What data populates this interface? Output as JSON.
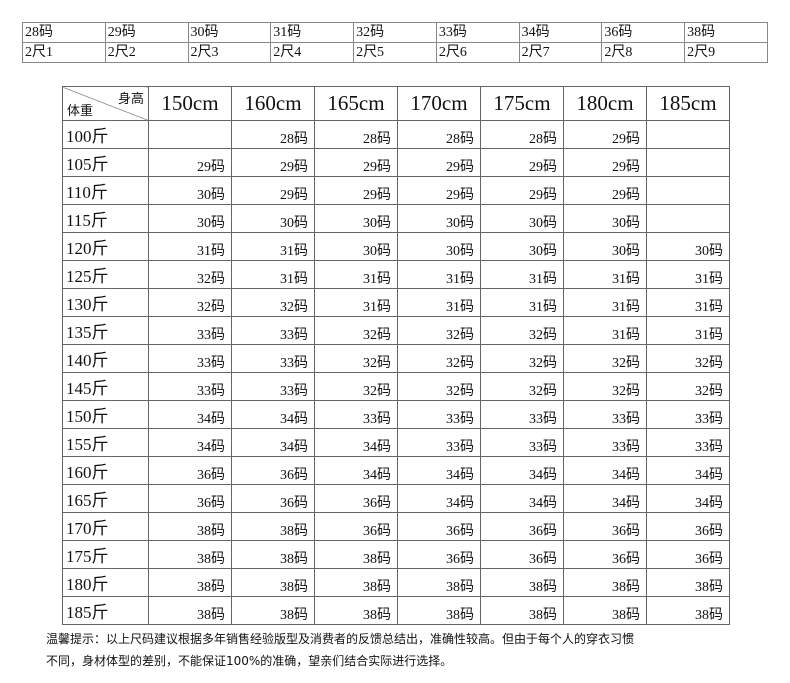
{
  "top_table": {
    "rows": [
      [
        "28码",
        "29码",
        "30码",
        "31码",
        "32码",
        "33码",
        "34码",
        "36码",
        "38码"
      ],
      [
        "2尺1",
        "2尺2",
        "2尺3",
        "2尺4",
        "2尺5",
        "2尺6",
        "2尺7",
        "2尺8",
        "2尺9"
      ]
    ]
  },
  "main_table": {
    "corner_top": "身高",
    "corner_bottom": "体重",
    "columns": [
      "150cm",
      "160cm",
      "165cm",
      "170cm",
      "175cm",
      "180cm",
      "185cm"
    ],
    "rows": [
      {
        "label": "100斤",
        "cells": [
          null,
          "28码",
          "28码",
          "28码",
          "28码",
          "29码",
          null
        ]
      },
      {
        "label": "105斤",
        "cells": [
          "29码",
          "29码",
          "29码",
          "29码",
          "29码",
          "29码",
          null
        ]
      },
      {
        "label": "110斤",
        "cells": [
          "30码",
          "29码",
          "29码",
          "29码",
          "29码",
          "29码",
          null
        ]
      },
      {
        "label": "115斤",
        "cells": [
          "30码",
          "30码",
          "30码",
          "30码",
          "30码",
          "30码",
          null
        ]
      },
      {
        "label": "120斤",
        "cells": [
          "31码",
          "31码",
          "30码",
          "30码",
          "30码",
          "30码",
          "30码"
        ]
      },
      {
        "label": "125斤",
        "cells": [
          "32码",
          "31码",
          "31码",
          "31码",
          "31码",
          "31码",
          "31码"
        ]
      },
      {
        "label": "130斤",
        "cells": [
          "32码",
          "32码",
          "31码",
          "31码",
          "31码",
          "31码",
          "31码"
        ]
      },
      {
        "label": "135斤",
        "cells": [
          "33码",
          "33码",
          "32码",
          "32码",
          "32码",
          "31码",
          "31码"
        ]
      },
      {
        "label": "140斤",
        "cells": [
          "33码",
          "33码",
          "32码",
          "32码",
          "32码",
          "32码",
          "32码"
        ]
      },
      {
        "label": "145斤",
        "cells": [
          "33码",
          "33码",
          "32码",
          "32码",
          "32码",
          "32码",
          "32码"
        ]
      },
      {
        "label": "150斤",
        "cells": [
          "34码",
          "34码",
          "33码",
          "33码",
          "33码",
          "33码",
          "33码"
        ]
      },
      {
        "label": "155斤",
        "cells": [
          "34码",
          "34码",
          "34码",
          "33码",
          "33码",
          "33码",
          "33码"
        ]
      },
      {
        "label": "160斤",
        "cells": [
          "36码",
          "36码",
          "34码",
          "34码",
          "34码",
          "34码",
          "34码"
        ]
      },
      {
        "label": "165斤",
        "cells": [
          "36码",
          "36码",
          "36码",
          "34码",
          "34码",
          "34码",
          "34码"
        ]
      },
      {
        "label": "170斤",
        "cells": [
          "38码",
          "38码",
          "36码",
          "36码",
          "36码",
          "36码",
          "36码"
        ]
      },
      {
        "label": "175斤",
        "cells": [
          "38码",
          "38码",
          "38码",
          "36码",
          "36码",
          "36码",
          "36码"
        ]
      },
      {
        "label": "180斤",
        "cells": [
          "38码",
          "38码",
          "38码",
          "38码",
          "38码",
          "38码",
          "38码"
        ]
      },
      {
        "label": "185斤",
        "cells": [
          "38码",
          "38码",
          "38码",
          "38码",
          "38码",
          "38码",
          "38码"
        ]
      }
    ]
  },
  "footer": {
    "lines": [
      "温馨提示：以上尺码建议根据多年销售经验版型及消费者的反馈总结出，准确性较高。但由于每个人的穿衣习惯",
      "不同，身材体型的差别，不能保证100%的准确，望亲们结合实际进行选择。"
    ]
  }
}
